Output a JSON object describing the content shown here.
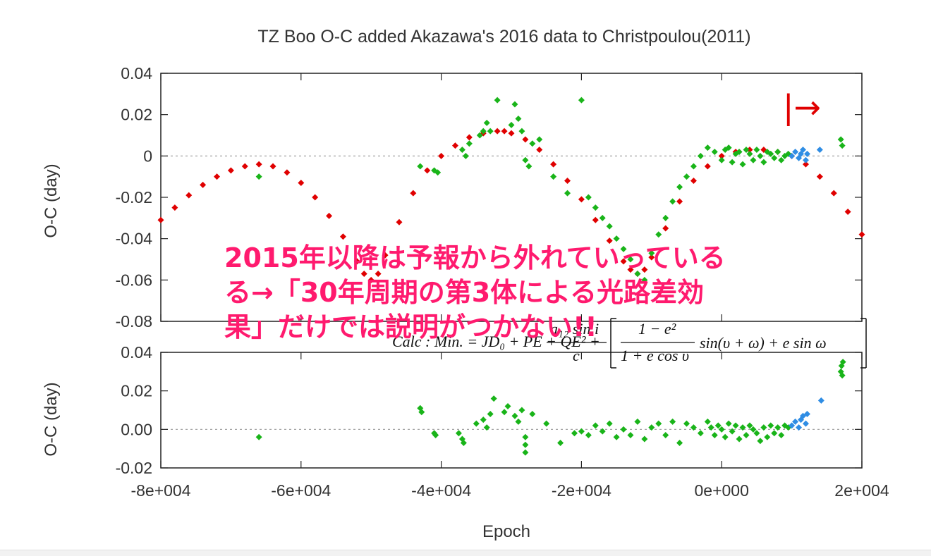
{
  "chart_data": [
    {
      "type": "scatter",
      "panel": "top",
      "title": "TZ Boo O-C   added Akazawa's 2016 data to Christpoulou(2011)",
      "ylabel": "O-C (day)",
      "ylim": [
        -0.08,
        0.04
      ],
      "xlim": [
        -80000,
        20000
      ],
      "y_ticks": [
        "0.04",
        "0.02",
        "0",
        "-0.02",
        "-0.04",
        "-0.06",
        "-0.08"
      ],
      "y_tick_values": [
        0.04,
        0.02,
        0,
        -0.02,
        -0.04,
        -0.06,
        -0.08
      ],
      "grid": "dashed zero line",
      "series": [
        {
          "color": "#e00000",
          "marker": "small dots (model curve)",
          "x": [
            -80000,
            -78000,
            -76000,
            -74000,
            -72000,
            -70000,
            -68000,
            -66000,
            -64000,
            -62000,
            -60000,
            -58000,
            -56000,
            -54000,
            -52000,
            -51000,
            -50000,
            -49000,
            -48000,
            -46000,
            -44000,
            -42000,
            -40000,
            -38000,
            -36000,
            -34000,
            -32000,
            -31000,
            -30000,
            -28000,
            -26000,
            -24000,
            -22000,
            -20000,
            -18000,
            -16000,
            -14000,
            -13000,
            -12000,
            -11000,
            -10000,
            -8000,
            -6000,
            -4000,
            -2000,
            0,
            2000,
            4000,
            6000,
            8000,
            10000,
            12000,
            14000,
            16000,
            18000,
            20000
          ],
          "y": [
            -0.031,
            -0.025,
            -0.019,
            -0.014,
            -0.01,
            -0.007,
            -0.005,
            -0.004,
            -0.005,
            -0.008,
            -0.013,
            -0.02,
            -0.029,
            -0.039,
            -0.051,
            -0.057,
            -0.06,
            -0.057,
            -0.048,
            -0.032,
            -0.018,
            -0.007,
            0.0,
            0.005,
            0.009,
            0.011,
            0.012,
            0.012,
            0.011,
            0.008,
            0.003,
            -0.004,
            -0.012,
            -0.021,
            -0.031,
            -0.041,
            -0.051,
            -0.055,
            -0.057,
            -0.055,
            -0.049,
            -0.035,
            -0.022,
            -0.012,
            -0.005,
            0.0,
            0.002,
            0.003,
            0.003,
            0.002,
            0.0,
            -0.004,
            -0.01,
            -0.018,
            -0.027,
            -0.038
          ]
        },
        {
          "color": "#19b419",
          "marker": "diamond",
          "x": [
            -66000,
            -43000,
            -41000,
            -40500,
            -37000,
            -36500,
            -36000,
            -34500,
            -34000,
            -33500,
            -33000,
            -32000,
            -30000,
            -29500,
            -29000,
            -28500,
            -28000,
            -27500,
            -27000,
            -26000,
            -24000,
            -22000,
            -20000,
            -19000,
            -18000,
            -17000,
            -16000,
            -15000,
            -14000,
            -13000,
            -12000,
            -11000,
            -10000,
            -9000,
            -8000,
            -7000,
            -6000,
            -5000,
            -4000,
            -3000,
            -2000,
            -1000,
            0,
            500,
            1000,
            1500,
            2000,
            2500,
            3000,
            3500,
            4000,
            4500,
            5000,
            5500,
            6000,
            6500,
            7000,
            7500,
            8000,
            8500,
            9000,
            9500,
            17000,
            17200
          ],
          "y": [
            -0.01,
            -0.005,
            -0.007,
            -0.008,
            0.003,
            0.0,
            0.006,
            0.01,
            0.012,
            0.016,
            0.012,
            0.027,
            0.015,
            0.025,
            0.018,
            0.012,
            -0.002,
            -0.005,
            0.006,
            0.008,
            -0.01,
            -0.018,
            0.027,
            -0.02,
            -0.025,
            -0.03,
            -0.034,
            -0.04,
            -0.045,
            -0.05,
            -0.057,
            -0.06,
            -0.047,
            -0.038,
            -0.03,
            -0.022,
            -0.015,
            -0.01,
            -0.005,
            0.0,
            0.004,
            0.002,
            -0.002,
            0.003,
            0.004,
            -0.003,
            0.001,
            0.002,
            -0.004,
            0.003,
            0.001,
            -0.002,
            0.003,
            0.0,
            -0.003,
            0.002,
            0.001,
            -0.001,
            0.002,
            -0.002,
            0.0,
            0.001,
            0.008,
            0.005
          ]
        },
        {
          "color": "#2f8de4",
          "marker": "diamond",
          "x": [
            10000,
            10500,
            11000,
            11300,
            11600,
            12000,
            12200,
            14000
          ],
          "y": [
            0.0,
            0.002,
            -0.001,
            0.001,
            0.003,
            -0.002,
            0.001,
            0.003
          ]
        }
      ]
    },
    {
      "type": "scatter",
      "panel": "bottom",
      "ylabel": "O-C (day)",
      "xlabel": "Epoch",
      "ylim": [
        -0.02,
        0.04
      ],
      "xlim": [
        -80000,
        20000
      ],
      "y_ticks": [
        "0.04",
        "0.02",
        "0.00",
        "-0.02"
      ],
      "y_tick_values": [
        0.04,
        0.02,
        0.0,
        -0.02
      ],
      "x_ticks": [
        "-8e+004",
        "-6e+004",
        "-4e+004",
        "-2e+004",
        "0e+000",
        "2e+004"
      ],
      "x_tick_values": [
        -80000,
        -60000,
        -40000,
        -20000,
        0,
        20000
      ],
      "grid": "dashed zero line",
      "series": [
        {
          "color": "#19b419",
          "marker": "diamond",
          "x": [
            -66000,
            -43000,
            -42800,
            -41000,
            -40800,
            -37500,
            -37000,
            -36800,
            -35000,
            -34000,
            -33500,
            -33000,
            -32500,
            -31000,
            -30500,
            -29500,
            -29000,
            -28500,
            -28000,
            -28000,
            -28000,
            -27000,
            -25000,
            -23000,
            -21000,
            -20000,
            -19000,
            -18000,
            -17000,
            -16000,
            -15000,
            -14000,
            -13000,
            -12000,
            -11000,
            -10000,
            -9000,
            -8000,
            -7000,
            -6000,
            -5000,
            -4000,
            -3000,
            -2000,
            -1500,
            -1000,
            -500,
            0,
            500,
            1000,
            1500,
            2000,
            2500,
            3000,
            3500,
            4000,
            4500,
            5000,
            5500,
            6000,
            6500,
            7000,
            7500,
            8000,
            8500,
            9000,
            9500,
            17000,
            17100,
            17200,
            17300
          ],
          "y": [
            -0.004,
            0.011,
            0.009,
            -0.002,
            -0.003,
            -0.002,
            -0.005,
            -0.007,
            0.003,
            0.005,
            0.001,
            0.008,
            0.016,
            0.009,
            0.012,
            0.007,
            0.004,
            0.01,
            -0.004,
            -0.008,
            -0.012,
            0.008,
            0.003,
            -0.007,
            -0.002,
            -0.001,
            -0.003,
            0.002,
            -0.001,
            0.003,
            -0.004,
            0.0,
            -0.003,
            0.004,
            -0.005,
            0.001,
            0.003,
            -0.003,
            0.004,
            -0.007,
            0.003,
            0.001,
            -0.002,
            0.004,
            0.001,
            -0.003,
            0.002,
            0.0,
            -0.004,
            0.003,
            -0.001,
            0.002,
            -0.005,
            0.001,
            -0.003,
            0.002,
            0.0,
            -0.002,
            -0.006,
            0.001,
            -0.004,
            0.002,
            -0.002,
            0.001,
            -0.003,
            0.002,
            0.001,
            0.03,
            0.033,
            0.028,
            0.035
          ]
        },
        {
          "color": "#2f8de4",
          "marker": "diamond",
          "x": [
            10000,
            10500,
            11000,
            11300,
            11600,
            12000,
            12200,
            14200
          ],
          "y": [
            0.002,
            0.004,
            0.001,
            0.005,
            0.007,
            0.003,
            0.008,
            0.015
          ]
        }
      ]
    }
  ],
  "annotations": {
    "arrow_marker": "|→",
    "formula": "Calc:Min. = JD₀ + PE + QE² + (a₁₂ sin i / c)[ (1 − e²)/(1 + e cos υ) sin(υ + ω) + e sin ω ]",
    "overlay_lines": [
      "2015年以降は予報から外れていっている",
      "る→「30年周期の第3体による光路差効",
      "果」だけでは説明がつかない!!"
    ]
  },
  "colors": {
    "model": "#e00000",
    "green_points": "#19b419",
    "blue_points": "#2f8de4",
    "overlay_text": "#ff1a6e",
    "arrow": "#e00000"
  }
}
